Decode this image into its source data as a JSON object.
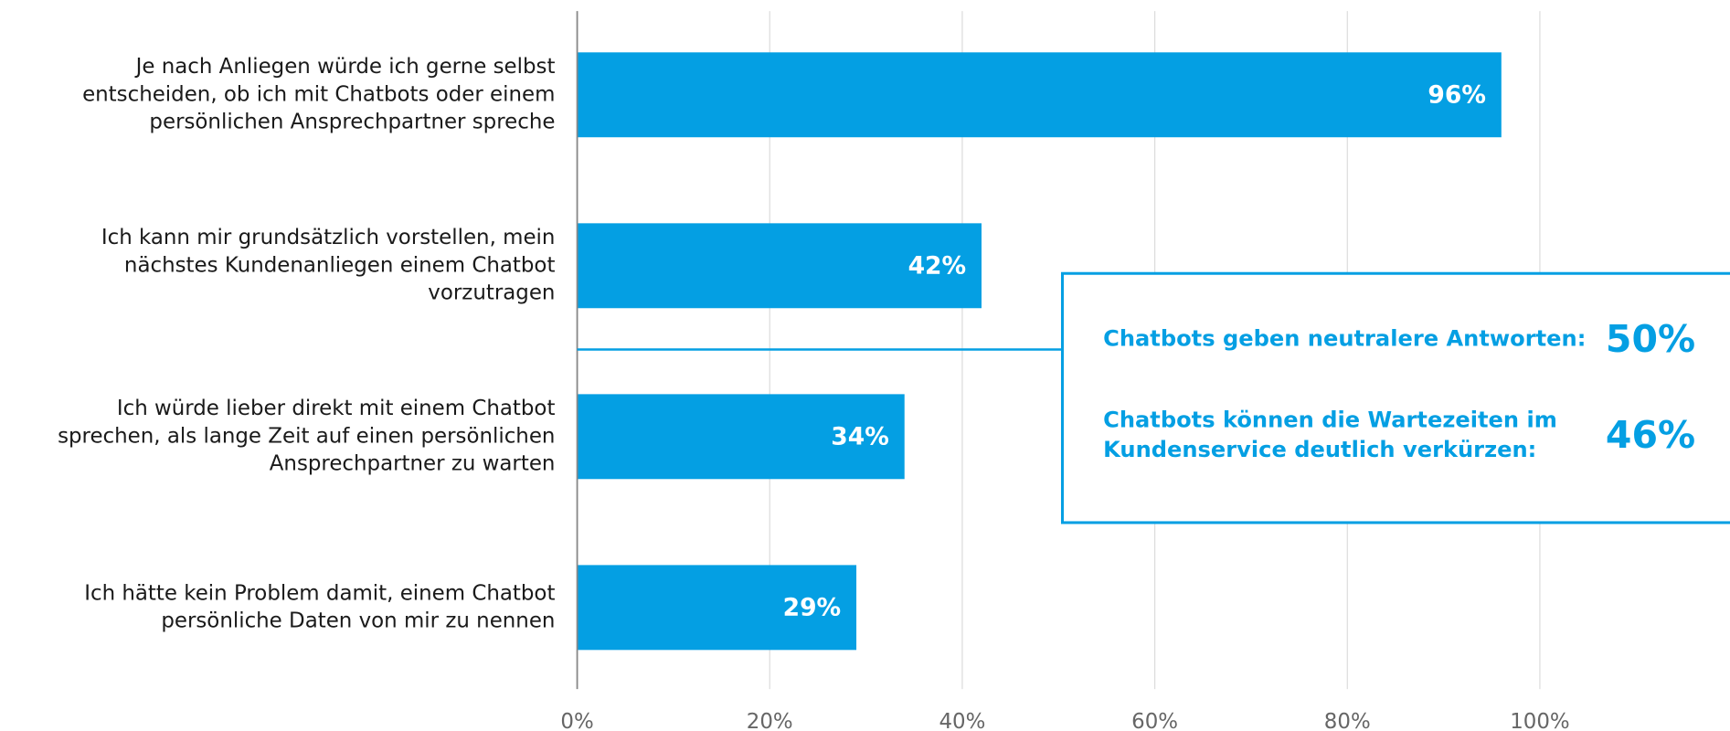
{
  "chart_data": {
    "type": "barh",
    "categories": [
      [
        "Je nach Anliegen würde ich gerne selbst",
        "entscheiden, ob ich mit Chatbots oder einem",
        "persönlichen Ansprechpartner spreche"
      ],
      [
        "Ich kann mir grundsätzlich vorstellen, mein",
        "nächstes Kundenanliegen einem Chatbot",
        "vorzutragen"
      ],
      [
        "Ich würde lieber direkt mit einem Chatbot",
        "sprechen, als lange Zeit auf einen persönlichen",
        "Ansprechpartner zu warten"
      ],
      [
        "Ich hätte kein Problem damit, einem Chatbot",
        "persönliche Daten von mir zu nennen"
      ]
    ],
    "values": [
      96,
      42,
      34,
      29
    ],
    "value_labels": [
      "96%",
      "42%",
      "34%",
      "29%"
    ],
    "color": "#049fe3",
    "xlim": [
      0,
      120
    ],
    "xticks": [
      {
        "value": 0,
        "label": "0%"
      },
      {
        "value": 20,
        "label": "20%"
      },
      {
        "value": 40,
        "label": "40%"
      },
      {
        "value": 60,
        "label": "60%"
      },
      {
        "value": 80,
        "label": "80%"
      },
      {
        "value": 100,
        "label": "100%"
      }
    ],
    "grid": true,
    "annotations": [
      {
        "text": [
          "Chatbots geben neutralere Antworten:"
        ],
        "figure": "50%"
      },
      {
        "text": [
          "Chatbots können die Wartezeiten im",
          "Kundenservice deutlich verkürzen:"
        ],
        "figure": "46%"
      }
    ]
  }
}
